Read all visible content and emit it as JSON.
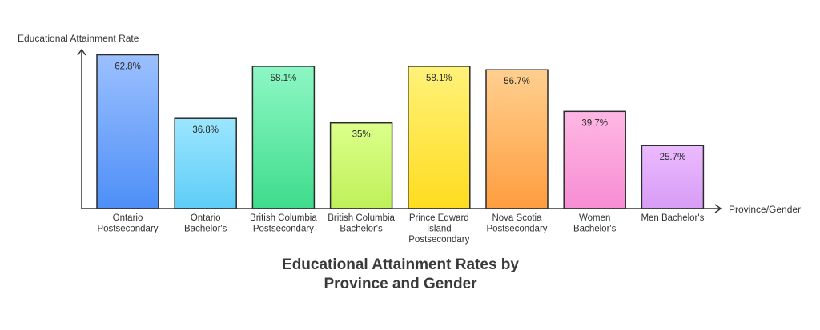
{
  "chart_data": {
    "type": "bar",
    "title_lines": [
      "Educational Attainment Rates by",
      "Province and Gender"
    ],
    "ylabel": "Educational Attainment Rate",
    "xlabel": "Province/Gender",
    "ylim": [
      0,
      70
    ],
    "grid": false,
    "categories": [
      {
        "lines": [
          "Ontario",
          "Postsecondary"
        ]
      },
      {
        "lines": [
          "Ontario",
          "Bachelor's"
        ]
      },
      {
        "lines": [
          "British Columbia",
          "Postsecondary"
        ]
      },
      {
        "lines": [
          "British Columbia",
          "Bachelor's"
        ]
      },
      {
        "lines": [
          "Prince Edward",
          "Island",
          "Postsecondary"
        ]
      },
      {
        "lines": [
          "Nova Scotia",
          "Postsecondary"
        ]
      },
      {
        "lines": [
          "Women",
          "Bachelor's"
        ]
      },
      {
        "lines": [
          "Men Bachelor's"
        ]
      }
    ],
    "values": [
      62.8,
      36.8,
      58.1,
      35,
      58.1,
      56.7,
      39.7,
      25.7
    ],
    "value_labels": [
      "62.8%",
      "36.8%",
      "58.1%",
      "35%",
      "58.1%",
      "56.7%",
      "39.7%",
      "25.7%"
    ],
    "bar_colors": [
      [
        "#9cc0ff",
        "#4d8ff7"
      ],
      [
        "#9be6ff",
        "#5fcdf7"
      ],
      [
        "#8df7c4",
        "#3fdc8c"
      ],
      [
        "#dcff8a",
        "#bff05a"
      ],
      [
        "#fff27a",
        "#ffdc1f"
      ],
      [
        "#ffcf8f",
        "#ff9d3f"
      ],
      [
        "#ffb7e4",
        "#f78dd3"
      ],
      [
        "#ebbaff",
        "#d79cf4"
      ]
    ]
  }
}
